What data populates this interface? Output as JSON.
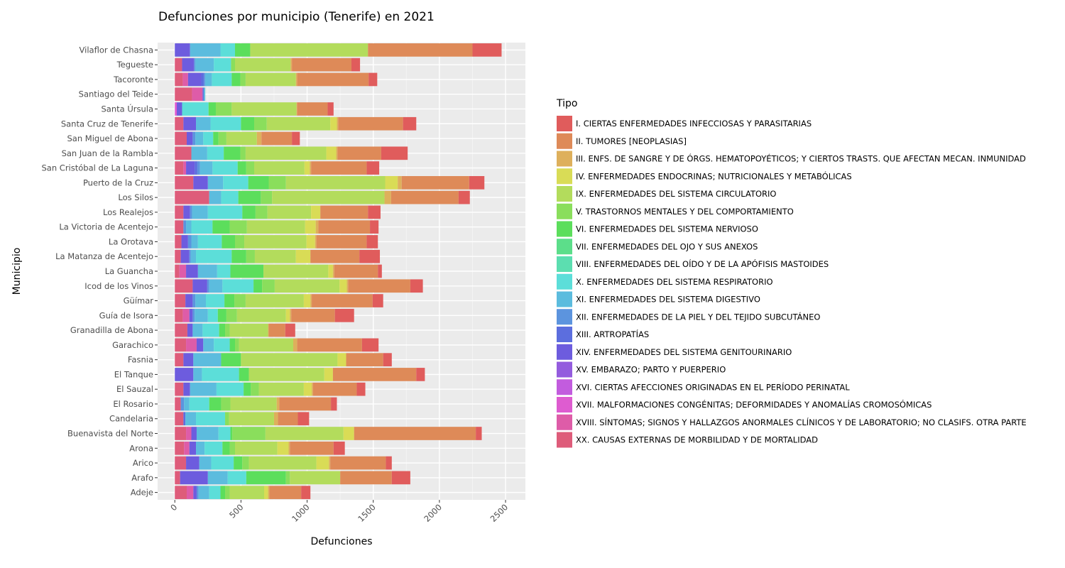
{
  "chart_data": {
    "type": "bar",
    "orientation": "horizontal",
    "stacked": true,
    "title": "Defunciones por municipio (Tenerife) en 2021",
    "xlabel": "Defunciones",
    "ylabel": "Municipio",
    "xlim": [
      0,
      2650
    ],
    "xticks": [
      0,
      500,
      1000,
      1500,
      2000,
      2500
    ],
    "grid": true,
    "legend_title": "Tipo",
    "legend_position": "right",
    "categories": [
      "Vilaflor de Chasna",
      "Tegueste",
      "Tacoronte",
      "Santiago del Teide",
      "Santa Úrsula",
      "Santa Cruz de Tenerife",
      "San Miguel de Abona",
      "San Juan de la Rambla",
      "San Cristóbal de La Laguna",
      "Puerto de la Cruz",
      "Los Silos",
      "Los Realejos",
      "La Victoria de Acentejo",
      "La Orotava",
      "La Matanza de Acentejo",
      "La Guancha",
      "Icod de los Vinos",
      "Güímar",
      "Guía de Isora",
      "Granadilla de Abona",
      "Garachico",
      "Fasnia",
      "El Tanque",
      "El Sauzal",
      "El Rosario",
      "Candelaria",
      "Buenavista del Norte",
      "Arona",
      "Arico",
      "Arafo",
      "Adeje"
    ],
    "series": [
      {
        "name": "I. CIERTAS ENFERMEDADES INFECCIOSAS Y PARASITARIAS",
        "color": "#e05c5c",
        "values": [
          220,
          65,
          65,
          0,
          45,
          100,
          60,
          200,
          95,
          115,
          85,
          95,
          65,
          85,
          155,
          30,
          95,
          80,
          145,
          75,
          125,
          65,
          65,
          65,
          45,
          85,
          45,
          85,
          45,
          140,
          70
        ]
      },
      {
        "name": "II. TUMORES [NEOPLASIAS]",
        "color": "#de8a58",
        "values": [
          790,
          450,
          540,
          0,
          230,
          490,
          230,
          330,
          420,
          510,
          510,
          360,
          390,
          380,
          370,
          330,
          470,
          460,
          330,
          125,
          490,
          280,
          630,
          330,
          390,
          150,
          920,
          330,
          420,
          390,
          240
        ]
      },
      {
        "name": "III. ENFS. DE SANGRE Y DE ÓRGS. HEMATOPOYÉTICOS; Y CIERTOS TRASTS. QUE AFECTAN MECAN. INMUNIDAD",
        "color": "#deb05c",
        "values": [
          0,
          10,
          10,
          0,
          5,
          10,
          35,
          10,
          10,
          30,
          50,
          0,
          20,
          10,
          0,
          10,
          10,
          10,
          10,
          5,
          30,
          0,
          0,
          10,
          20,
          30,
          0,
          10,
          10,
          0,
          10
        ]
      },
      {
        "name": "IV. ENFERMEDADES ENDOCRINAS; NUTRICIONALES Y METABÓLICAS",
        "color": "#d9dc56",
        "values": [
          0,
          0,
          0,
          0,
          0,
          50,
          0,
          75,
          40,
          95,
          0,
          70,
          80,
          65,
          110,
          35,
          55,
          50,
          30,
          0,
          0,
          65,
          65,
          60,
          0,
          0,
          80,
          85,
          95,
          0,
          30
        ]
      },
      {
        "name": "IX. ENFERMEDADES DEL SISTEMA CIRCULATORIO",
        "color": "#b3dc5c",
        "values": [
          890,
          420,
          380,
          0,
          490,
          480,
          230,
          610,
          380,
          750,
          850,
          330,
          440,
          470,
          310,
          490,
          490,
          440,
          370,
          290,
          410,
          730,
          570,
          340,
          350,
          340,
          590,
          320,
          510,
          380,
          260
        ]
      },
      {
        "name": "V. TRASTORNOS MENTALES Y DEL COMPORTAMIENTO",
        "color": "#8ade5c",
        "values": [
          0,
          30,
          40,
          0,
          120,
          95,
          60,
          40,
          60,
          130,
          85,
          90,
          130,
          70,
          65,
          0,
          95,
          85,
          80,
          35,
          30,
          0,
          0,
          60,
          70,
          30,
          250,
          40,
          50,
          30,
          35
        ]
      },
      {
        "name": "VI. ENFERMEDADES DEL SISTEMA NERVIOSO",
        "color": "#5cde5c",
        "values": [
          115,
          0,
          65,
          0,
          55,
          100,
          40,
          125,
          65,
          155,
          170,
          100,
          130,
          100,
          110,
          250,
          65,
          75,
          65,
          45,
          40,
          150,
          75,
          55,
          90,
          0,
          15,
          55,
          65,
          300,
          35
        ]
      },
      {
        "name": "VII. ENFERMEDADES DEL OJO Y SUS ANEXOS",
        "color": "#5cde8a",
        "values": [
          0,
          0,
          0,
          0,
          0,
          0,
          0,
          0,
          0,
          0,
          0,
          0,
          0,
          0,
          0,
          0,
          0,
          0,
          0,
          0,
          0,
          0,
          0,
          0,
          0,
          0,
          0,
          0,
          0,
          0,
          0
        ]
      },
      {
        "name": "VIII. ENFERMEDADES DEL OÍDO Y DE LA APÓFISIS MASTOIDES",
        "color": "#5cdeb0",
        "values": [
          0,
          0,
          0,
          0,
          0,
          0,
          0,
          0,
          0,
          0,
          0,
          0,
          0,
          0,
          0,
          0,
          0,
          0,
          0,
          0,
          0,
          0,
          0,
          0,
          0,
          0,
          0,
          0,
          0,
          0,
          0
        ]
      },
      {
        "name": "X. ENFERMEDADES DEL SISTEMA RESPIRATORIO",
        "color": "#5cded9",
        "values": [
          110,
          130,
          150,
          0,
          200,
          230,
          75,
          125,
          190,
          190,
          130,
          260,
          160,
          180,
          270,
          100,
          235,
          140,
          75,
          125,
          120,
          0,
          280,
          205,
          150,
          220,
          90,
          135,
          170,
          140,
          85
        ]
      },
      {
        "name": "XI. ENFERMEDADES DEL SISTEMA DIGESTIVO",
        "color": "#5cbcde",
        "values": [
          230,
          140,
          50,
          10,
          0,
          110,
          60,
          120,
          95,
          115,
          90,
          120,
          40,
          50,
          40,
          145,
          100,
          80,
          100,
          75,
          80,
          210,
          65,
          200,
          40,
          80,
          165,
          65,
          90,
          150,
          80
        ]
      },
      {
        "name": "XII. ENFERMEDADES DE LA PIEL Y DEL TEJIDO SUBCUTÁNEO",
        "color": "#5c94de",
        "values": [
          0,
          10,
          10,
          0,
          0,
          0,
          20,
          0,
          20,
          0,
          0,
          15,
          20,
          25,
          10,
          0,
          15,
          20,
          15,
          0,
          0,
          0,
          0,
          0,
          25,
          0,
          0,
          0,
          0,
          0,
          15
        ]
      },
      {
        "name": "XIII. ARTROPATÍAS",
        "color": "#5c6ede",
        "values": [
          0,
          0,
          20,
          10,
          0,
          0,
          0,
          0,
          20,
          0,
          0,
          0,
          0,
          0,
          0,
          0,
          0,
          0,
          0,
          0,
          0,
          0,
          0,
          0,
          0,
          15,
          0,
          0,
          0,
          0,
          0
        ]
      },
      {
        "name": "XIV. ENFERMEDADES DEL SISTEMA GENITOURINARIO",
        "color": "#6d5cde",
        "values": [
          115,
          90,
          100,
          0,
          40,
          95,
          45,
          0,
          65,
          110,
          0,
          50,
          0,
          50,
          65,
          90,
          110,
          55,
          25,
          40,
          50,
          75,
          140,
          50,
          0,
          0,
          40,
          50,
          100,
          210,
          25
        ]
      },
      {
        "name": "XV. EMBARAZO; PARTO Y PUERPERIO",
        "color": "#945cde",
        "values": [
          0,
          0,
          0,
          0,
          0,
          0,
          0,
          0,
          0,
          0,
          0,
          0,
          0,
          0,
          0,
          0,
          0,
          0,
          0,
          0,
          0,
          0,
          0,
          0,
          0,
          0,
          0,
          0,
          0,
          0,
          0
        ]
      },
      {
        "name": "XVI. CIERTAS AFECCIONES ORIGINADAS EN EL PERÍODO PERINATAL",
        "color": "#c25cde",
        "values": [
          0,
          0,
          0,
          0,
          0,
          0,
          0,
          0,
          0,
          0,
          0,
          0,
          0,
          0,
          0,
          0,
          0,
          0,
          0,
          0,
          0,
          0,
          0,
          0,
          0,
          0,
          0,
          0,
          0,
          0,
          0
        ]
      },
      {
        "name": "XVII. MALFORMACIONES CONGÉNITAS; DEFORMIDADES Y ANOMALÍAS CROMOSÓMICAS",
        "color": "#de5cd0",
        "values": [
          0,
          0,
          0,
          0,
          15,
          0,
          0,
          0,
          0,
          0,
          0,
          0,
          0,
          0,
          0,
          0,
          0,
          0,
          0,
          0,
          0,
          0,
          0,
          0,
          0,
          0,
          0,
          0,
          0,
          0,
          0
        ]
      },
      {
        "name": "XVIII. SÍNTOMAS; SIGNOS Y HALLAZGOS ANORMALES CLÍNICOS Y DE LABORATORIO; NO CLASIFS. OTRA PARTE",
        "color": "#de5ca8",
        "values": [
          0,
          0,
          40,
          80,
          0,
          0,
          0,
          0,
          20,
          0,
          0,
          0,
          0,
          0,
          0,
          50,
          0,
          0,
          50,
          0,
          80,
          0,
          0,
          0,
          0,
          0,
          40,
          40,
          0,
          0,
          50
        ]
      },
      {
        "name": "XX. CAUSAS EXTERNAS DE MORBILIDAD Y DE MORTALIDAD",
        "color": "#de5c7a",
        "values": [
          0,
          55,
          60,
          130,
          0,
          65,
          90,
          125,
          65,
          140,
          260,
          65,
          65,
          50,
          45,
          35,
          135,
          80,
          60,
          95,
          85,
          65,
          0,
          65,
          45,
          65,
          85,
          70,
          85,
          40,
          90
        ]
      }
    ]
  }
}
